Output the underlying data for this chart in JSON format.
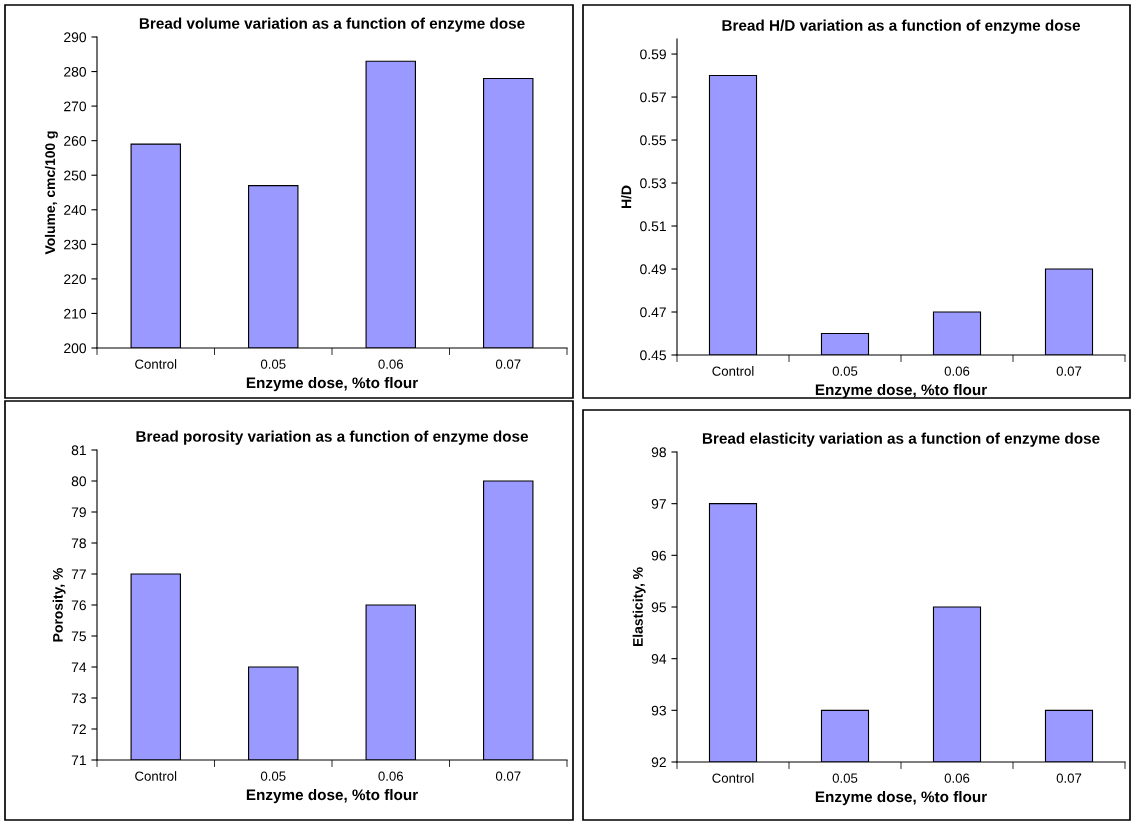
{
  "chart_data": [
    {
      "type": "bar",
      "title": "Bread volume variation as a function of enzyme dose",
      "xlabel": "Enzyme dose, %to flour",
      "ylabel": "Volume, cmc/100 g",
      "categories": [
        "Control",
        "0.05",
        "0.06",
        "0.07"
      ],
      "values": [
        259,
        247,
        283,
        278
      ],
      "color": "#9999ff",
      "ylim": [
        200,
        290
      ],
      "yticks": [
        200,
        210,
        220,
        230,
        240,
        250,
        260,
        270,
        280,
        290
      ],
      "grid": false,
      "legend": false
    },
    {
      "type": "bar",
      "title": "Bread H/D variation as a function of enzyme dose",
      "xlabel": "Enzyme dose, %to flour",
      "ylabel": "H/D",
      "categories": [
        "Control",
        "0.05",
        "0.06",
        "0.07"
      ],
      "values": [
        0.58,
        0.46,
        0.47,
        0.49
      ],
      "color": "#9999ff",
      "ylim": [
        0.45,
        0.597
      ],
      "yticks": [
        0.45,
        0.47,
        0.49,
        0.51,
        0.53,
        0.55,
        0.57,
        0.59
      ],
      "grid": false,
      "legend": false
    },
    {
      "type": "bar",
      "title": "Bread porosity variation as a function of enzyme dose",
      "xlabel": "Enzyme dose, %to flour",
      "ylabel": "Porosity, %",
      "categories": [
        "Control",
        "0.05",
        "0.06",
        "0.07"
      ],
      "values": [
        77,
        74,
        76,
        80
      ],
      "color": "#9999ff",
      "ylim": [
        71,
        81
      ],
      "yticks": [
        71,
        72,
        73,
        74,
        75,
        76,
        77,
        78,
        79,
        80,
        81
      ],
      "grid": false,
      "legend": false
    },
    {
      "type": "bar",
      "title": "Bread elasticity variation as a function of enzyme dose",
      "xlabel": "Enzyme dose, %to flour",
      "ylabel": "Elasticity, %",
      "categories": [
        "Control",
        "0.05",
        "0.06",
        "0.07"
      ],
      "values": [
        97,
        93,
        95,
        93
      ],
      "color": "#9999ff",
      "ylim": [
        92,
        98
      ],
      "yticks": [
        92,
        93,
        94,
        95,
        96,
        97,
        98
      ],
      "grid": false,
      "legend": false
    }
  ]
}
